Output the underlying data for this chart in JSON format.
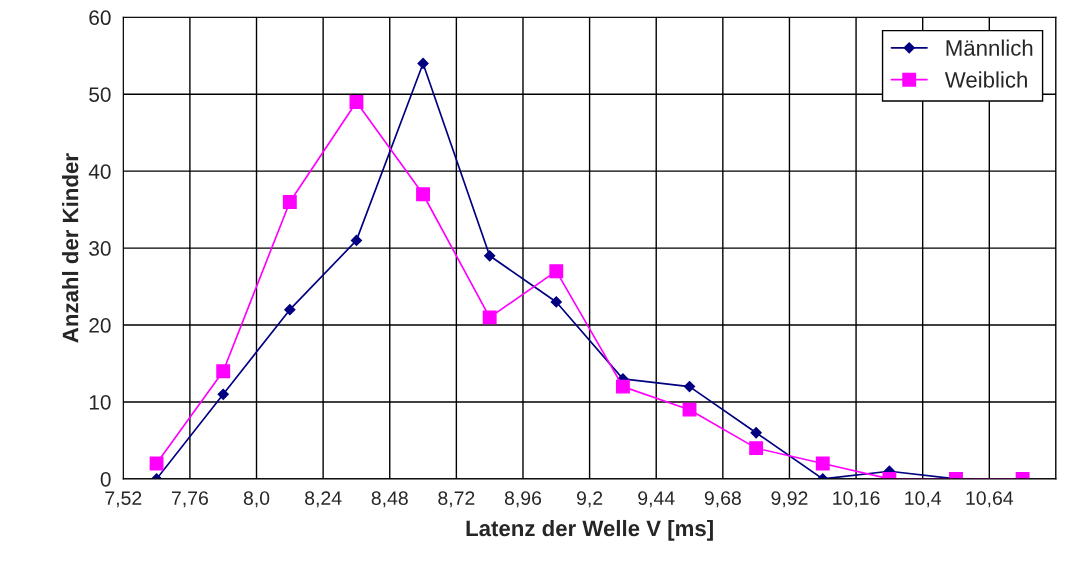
{
  "chart_data": {
    "type": "line",
    "xlabel": "Latenz der Welle V [ms]",
    "ylabel": "Anzahl der Kinder",
    "x": [
      7.64,
      7.88,
      8.12,
      8.36,
      8.6,
      8.84,
      9.08,
      9.32,
      9.56,
      9.8,
      10.04,
      10.28,
      10.52,
      10.76
    ],
    "series": [
      {
        "name": "Männlich",
        "color": "#000080",
        "marker": "diamond",
        "values": [
          0,
          11,
          22,
          31,
          54,
          29,
          23,
          13,
          12,
          6,
          0,
          1,
          0,
          0
        ]
      },
      {
        "name": "Weiblich",
        "color": "#ff00ff",
        "marker": "square",
        "values": [
          2,
          14,
          36,
          49,
          37,
          21,
          27,
          12,
          9,
          4,
          2,
          0,
          0,
          0
        ]
      }
    ],
    "xlim": [
      7.52,
      10.88
    ],
    "xticks": [
      {
        "value": 7.52,
        "label": "7,52"
      },
      {
        "value": 7.76,
        "label": "7,76"
      },
      {
        "value": 8.0,
        "label": "8,0"
      },
      {
        "value": 8.24,
        "label": "8,24"
      },
      {
        "value": 8.48,
        "label": "8,48"
      },
      {
        "value": 8.72,
        "label": "8,72"
      },
      {
        "value": 8.96,
        "label": "8,96"
      },
      {
        "value": 9.2,
        "label": "9,2"
      },
      {
        "value": 9.44,
        "label": "9,44"
      },
      {
        "value": 9.68,
        "label": "9,68"
      },
      {
        "value": 9.92,
        "label": "9,92"
      },
      {
        "value": 10.16,
        "label": "10,16"
      },
      {
        "value": 10.4,
        "label": "10,4"
      },
      {
        "value": 10.64,
        "label": "10,64"
      },
      {
        "value": 10.88,
        "label": null
      }
    ],
    "ylim": [
      0,
      60
    ],
    "yticks": [
      0,
      10,
      20,
      30,
      40,
      50,
      60
    ],
    "grid": true,
    "legend": "top right",
    "line_style": "solid"
  }
}
